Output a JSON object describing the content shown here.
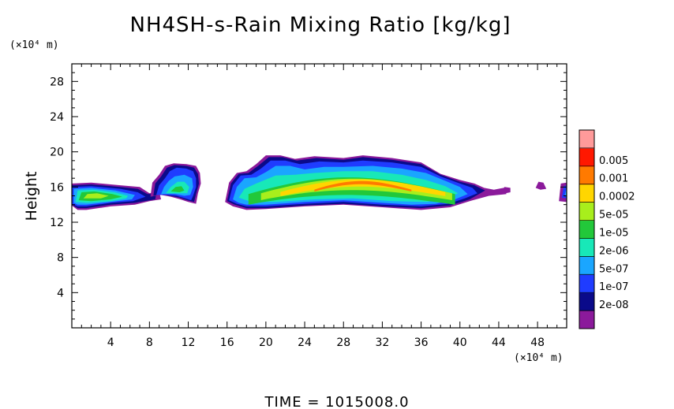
{
  "chart_data": {
    "type": "heatmap",
    "title": "NH4SH-s-Rain Mixing Ratio [kg/kg]",
    "ylabel": "Height",
    "y_unit": "(×10⁴ m)",
    "x_unit": "(×10⁴ m)",
    "xlim": [
      0,
      51
    ],
    "ylim": [
      0,
      30
    ],
    "x_ticks": [
      "4",
      "8",
      "12",
      "16",
      "20",
      "24",
      "28",
      "32",
      "36",
      "40",
      "44",
      "48"
    ],
    "y_ticks": [
      "4",
      "8",
      "12",
      "16",
      "20",
      "24",
      "28"
    ],
    "colorbar": {
      "levels": [
        "0.005",
        "0.001",
        "0.0002",
        "5e-05",
        "1e-05",
        "2e-06",
        "5e-07",
        "1e-07",
        "2e-08"
      ],
      "colors": [
        "#8b1a9b",
        "#0a0a8a",
        "#1f3cff",
        "#1aa6ff",
        "#18e8b8",
        "#22c83a",
        "#a8ee1c",
        "#ffd600",
        "#ff7a00",
        "#ff1800",
        "#ff9a9a"
      ]
    },
    "footer": "TIME = 1015008.0"
  }
}
